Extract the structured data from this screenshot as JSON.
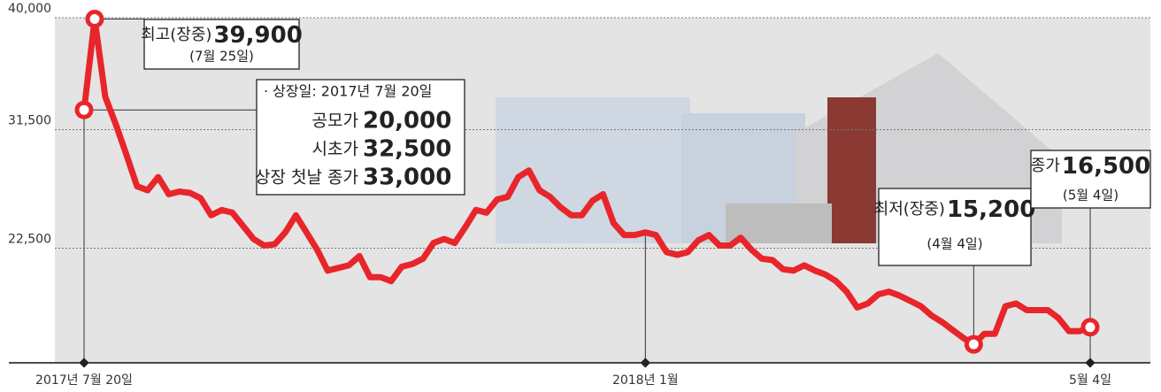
{
  "chart_data": {
    "type": "line",
    "color": "#e8252a",
    "grid": true,
    "ylim": [
      13800,
      40000
    ],
    "yticks": [
      {
        "value": 22500,
        "label": "22,500"
      },
      {
        "value": 31500,
        "label": "31,500"
      },
      {
        "value": 40000,
        "label": "40,000"
      }
    ],
    "categories": [
      "2017년 7월 20일",
      null,
      null,
      null,
      null,
      null,
      null,
      null,
      null,
      null,
      null,
      null,
      null,
      null,
      null,
      null,
      null,
      null,
      null,
      null,
      null,
      null,
      null,
      null,
      null,
      null,
      null,
      null,
      null,
      null,
      null,
      null,
      null,
      null,
      null,
      null,
      null,
      null,
      null,
      null,
      null,
      null,
      null,
      null,
      null,
      null,
      null,
      null,
      null,
      null,
      null,
      null,
      null,
      "2018년 1월",
      null,
      null,
      null,
      null,
      null,
      null,
      null,
      null,
      null,
      null,
      null,
      null,
      null,
      null,
      null,
      null,
      null,
      null,
      null,
      null,
      null,
      null,
      null,
      null,
      null,
      null,
      null,
      null,
      null,
      null,
      null,
      null,
      null,
      null,
      null,
      null,
      null,
      null,
      null,
      null,
      null,
      "5월 4일"
    ],
    "values": [
      33000,
      39900,
      34000,
      31900,
      29600,
      27200,
      26900,
      27900,
      26600,
      26800,
      26700,
      26300,
      25000,
      25400,
      25200,
      24200,
      23200,
      22700,
      22800,
      23700,
      25000,
      23700,
      22400,
      20800,
      21000,
      21200,
      21900,
      20300,
      20300,
      20000,
      21100,
      21300,
      21700,
      22900,
      23200,
      22900,
      24100,
      25400,
      25200,
      26200,
      26400,
      27900,
      28400,
      26900,
      26400,
      25600,
      25000,
      25000,
      26100,
      26600,
      24400,
      23500,
      23500,
      23700,
      23500,
      22200,
      22000,
      22200,
      23100,
      23500,
      22700,
      22700,
      23300,
      22400,
      21700,
      21600,
      20900,
      20800,
      21200,
      20800,
      20500,
      20000,
      19200,
      18000,
      18300,
      19000,
      19200,
      18900,
      18500,
      18100,
      17400,
      16900,
      16300,
      15700,
      15200,
      16000,
      16000,
      18100,
      18300,
      17800,
      17800,
      17800,
      17200,
      16200,
      16200,
      16500
    ],
    "value_labels": [
      null,
      "39,900",
      null,
      null,
      null,
      null,
      null,
      null,
      null,
      null,
      null,
      null,
      null,
      null,
      null,
      null,
      null,
      null,
      null,
      null,
      null,
      null,
      null,
      null,
      null,
      null,
      null,
      null,
      null,
      null,
      null,
      null,
      null,
      null,
      null,
      null,
      null,
      null,
      null,
      null,
      null,
      null,
      null,
      null,
      null,
      null,
      null,
      null,
      null,
      null,
      null,
      null,
      null,
      null,
      null,
      null,
      null,
      null,
      null,
      null,
      null,
      null,
      null,
      null,
      null,
      null,
      null,
      null,
      null,
      null,
      null,
      null,
      null,
      null,
      null,
      null,
      null,
      null,
      null,
      null,
      null,
      null,
      null,
      null,
      "15,200",
      null,
      null,
      null,
      null,
      null,
      null,
      null,
      null,
      null,
      null,
      "16,500"
    ],
    "annotations": [
      {
        "text": "최고(장중)",
        "date": "(7월 25일)"
      },
      {
        "text": "최저(장중)",
        "date": "(4월 4일)"
      },
      {
        "text": "종가",
        "date": "(5월 4일)"
      }
    ],
    "info": {
      "title": "· 상장일: 2017년 7월 20일",
      "rows": [
        {
          "label": "공모가",
          "value": "20,000"
        },
        {
          "label": "시초가",
          "value": "32,500"
        },
        {
          "label": "상장 첫날 종가",
          "value": "33,000"
        }
      ]
    }
  }
}
